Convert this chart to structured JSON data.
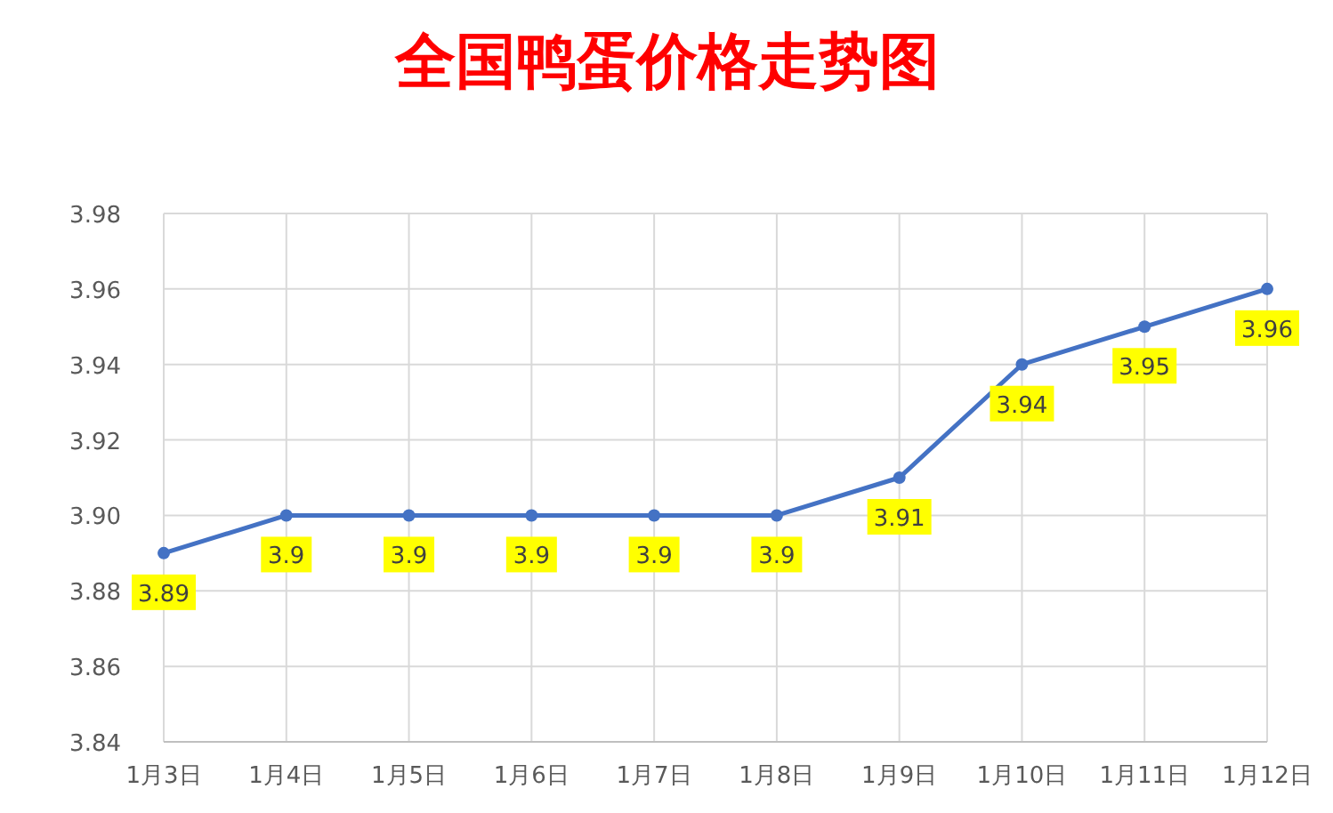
{
  "chart_data": {
    "type": "line",
    "title": "全国鸭蛋价格走势图",
    "categories": [
      "1月3日",
      "1月4日",
      "1月5日",
      "1月6日",
      "1月7日",
      "1月8日",
      "1月9日",
      "1月10日",
      "1月11日",
      "1月12日"
    ],
    "series": [
      {
        "color": "#4472c4",
        "values": [
          3.89,
          3.9,
          3.9,
          3.9,
          3.9,
          3.9,
          3.91,
          3.94,
          3.95,
          3.96
        ]
      }
    ],
    "ylim": [
      3.84,
      3.98
    ],
    "yticks": [
      {
        "value": 3.84,
        "label": "3.84"
      },
      {
        "value": 3.86,
        "label": "3.86"
      },
      {
        "value": 3.88,
        "label": "3.88"
      },
      {
        "value": 3.9,
        "label": "3.90"
      },
      {
        "value": 3.92,
        "label": "3.92"
      },
      {
        "value": 3.94,
        "label": "3.94"
      },
      {
        "value": 3.96,
        "label": "3.96"
      },
      {
        "value": 3.98,
        "label": "3.98"
      }
    ],
    "grid": true,
    "marker": "circle",
    "line_style": "solid",
    "data_labels": true
  }
}
